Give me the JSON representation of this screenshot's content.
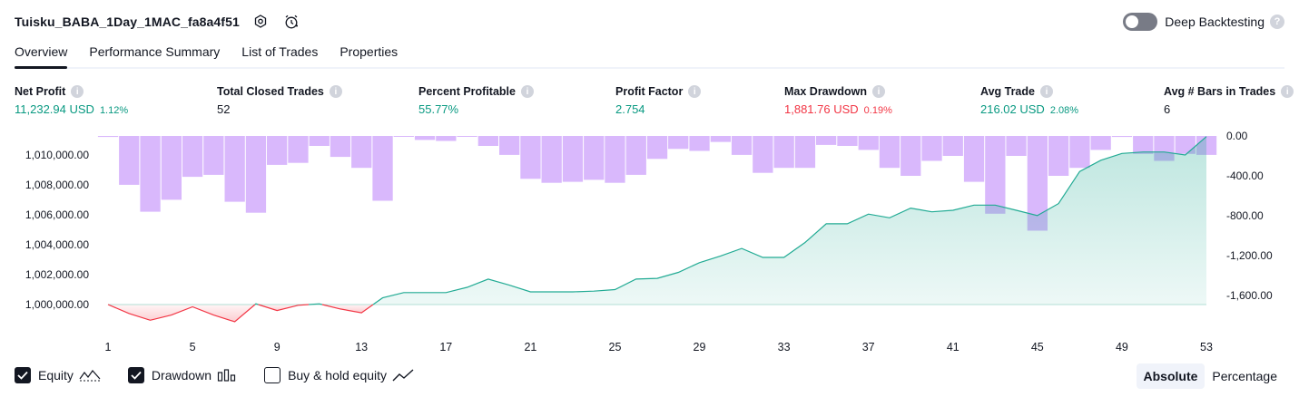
{
  "header": {
    "strategy_name": "Tuisku_BABA_1Day_1MAC_fa8a4f51",
    "deep_backtesting_label": "Deep Backtesting",
    "help_glyph": "?"
  },
  "tabs": [
    {
      "label": "Overview",
      "active": true
    },
    {
      "label": "Performance Summary",
      "active": false
    },
    {
      "label": "List of Trades",
      "active": false
    },
    {
      "label": "Properties",
      "active": false
    }
  ],
  "metrics": [
    {
      "label": "Net Profit",
      "value": "11,232.94 USD",
      "percent": "1.12%",
      "tone": "pos"
    },
    {
      "label": "Total Closed Trades",
      "value": "52",
      "percent": "",
      "tone": "neu"
    },
    {
      "label": "Percent Profitable",
      "value": "55.77%",
      "percent": "",
      "tone": "pos"
    },
    {
      "label": "Profit Factor",
      "value": "2.754",
      "percent": "",
      "tone": "pos"
    },
    {
      "label": "Max Drawdown",
      "value": "1,881.76 USD",
      "percent": "0.19%",
      "tone": "neg"
    },
    {
      "label": "Avg Trade",
      "value": "216.02 USD",
      "percent": "2.08%",
      "tone": "pos"
    },
    {
      "label": "Avg # Bars in Trades",
      "value": "6",
      "percent": "",
      "tone": "neu"
    }
  ],
  "legend": {
    "equity_label": "Equity",
    "equity_checked": true,
    "drawdown_label": "Drawdown",
    "drawdown_checked": true,
    "buyhold_label": "Buy & hold equity",
    "buyhold_checked": false
  },
  "mode": {
    "absolute_label": "Absolute",
    "percentage_label": "Percentage",
    "selected": "absolute"
  },
  "colors": {
    "positive": "#089981",
    "negative": "#f23645",
    "drawdown_bar": "#d9b8fc",
    "equity_line_pos": "#22ab94",
    "equity_line_neg": "#f23645"
  },
  "chart_data": {
    "type": "area",
    "x_ticks": [
      "1",
      "5",
      "9",
      "13",
      "17",
      "21",
      "25",
      "29",
      "33",
      "37",
      "41",
      "45",
      "49",
      "53"
    ],
    "left_axis": {
      "label": "",
      "ticks": [
        "1,010,000.00",
        "1,008,000.00",
        "1,006,000.00",
        "1,004,000.00",
        "1,002,000.00",
        "1,000,000.00"
      ],
      "range": [
        1000000,
        1011232.94
      ]
    },
    "right_axis": {
      "label": "",
      "ticks": [
        "0.00",
        "-400.00",
        "-800.00",
        "-1,200.00",
        "-1,600.00"
      ],
      "range": [
        -1881.76,
        0
      ]
    },
    "baseline": 1000000,
    "series": [
      {
        "name": "Equity",
        "type": "area",
        "trade": [
          1,
          2,
          3,
          4,
          5,
          6,
          7,
          8,
          9,
          10,
          11,
          12,
          13,
          14,
          15,
          16,
          17,
          18,
          19,
          20,
          21,
          22,
          23,
          24,
          25,
          26,
          27,
          28,
          29,
          30,
          31,
          32,
          33,
          34,
          35,
          36,
          37,
          38,
          39,
          40,
          41,
          42,
          43,
          44,
          45,
          46,
          47,
          48,
          49,
          50,
          51,
          52,
          53
        ],
        "values": [
          1000000,
          999400,
          998950,
          999300,
          999850,
          999300,
          998850,
          1000050,
          999600,
          999950,
          1000050,
          999700,
          999450,
          1000450,
          1000800,
          1000800,
          1000800,
          1001150,
          1001700,
          1001300,
          1000850,
          1000850,
          1000850,
          1000900,
          1001000,
          1001700,
          1001750,
          1002150,
          1002800,
          1003250,
          1003750,
          1003150,
          1003150,
          1004150,
          1005400,
          1005400,
          1006050,
          1005800,
          1006450,
          1006200,
          1006300,
          1006650,
          1006650,
          1006300,
          1005950,
          1006750,
          1008900,
          1009650,
          1010100,
          1010200,
          1010200,
          1010000,
          1011232.94
        ]
      },
      {
        "name": "Drawdown",
        "type": "bar",
        "trade": [
          1,
          2,
          3,
          4,
          5,
          6,
          7,
          8,
          9,
          10,
          11,
          12,
          13,
          14,
          15,
          16,
          17,
          18,
          19,
          20,
          21,
          22,
          23,
          24,
          25,
          26,
          27,
          28,
          29,
          30,
          31,
          32,
          33,
          34,
          35,
          36,
          37,
          38,
          39,
          40,
          41,
          42,
          43,
          44,
          45,
          46,
          47,
          48,
          49,
          50,
          51,
          52,
          53
        ],
        "values": [
          -10,
          -490,
          -760,
          -640,
          -410,
          -390,
          -660,
          -770,
          -290,
          -270,
          -100,
          -210,
          -320,
          -650,
          -5,
          -40,
          -50,
          -5,
          -100,
          -190,
          -430,
          -470,
          -460,
          -440,
          -470,
          -390,
          -230,
          -130,
          -150,
          -60,
          -190,
          -370,
          -320,
          -320,
          -90,
          -100,
          -140,
          -320,
          -400,
          -250,
          -200,
          -460,
          -780,
          -200,
          -950,
          -400,
          -320,
          -140,
          -10,
          -180,
          -250,
          -180,
          -190
        ]
      }
    ]
  }
}
